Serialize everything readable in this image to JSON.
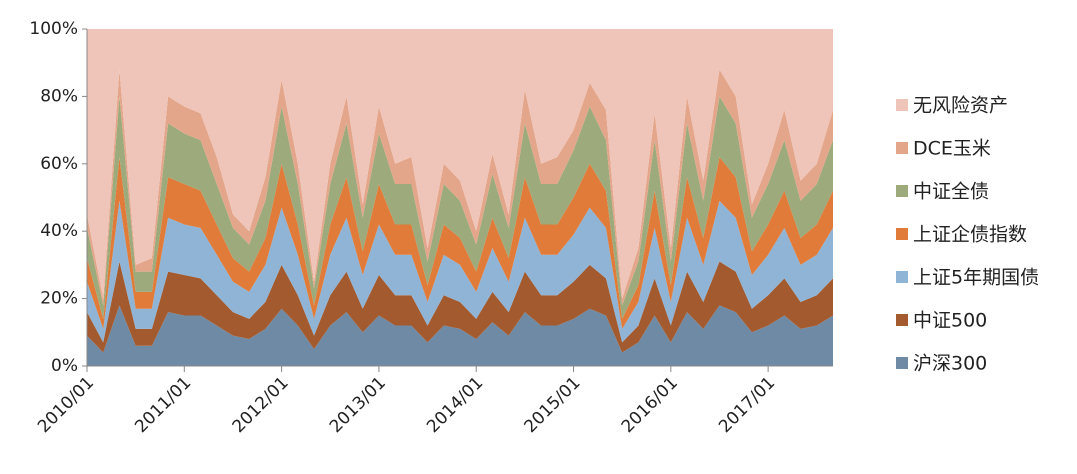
{
  "chart_data": {
    "type": "stacked_area",
    "x": [
      "2010/01",
      "2010/03",
      "2010/05",
      "2010/07",
      "2010/09",
      "2010/11",
      "2011/01",
      "2011/03",
      "2011/05",
      "2011/07",
      "2011/09",
      "2011/11",
      "2012/01",
      "2012/03",
      "2012/05",
      "2012/07",
      "2012/09",
      "2012/11",
      "2013/01",
      "2013/03",
      "2013/05",
      "2013/07",
      "2013/09",
      "2013/11",
      "2014/01",
      "2014/03",
      "2014/05",
      "2014/07",
      "2014/09",
      "2014/11",
      "2015/01",
      "2015/03",
      "2015/05",
      "2015/07",
      "2015/09",
      "2015/11",
      "2016/01",
      "2016/03",
      "2016/05",
      "2016/07",
      "2016/09",
      "2016/11",
      "2017/01",
      "2017/03",
      "2017/05",
      "2017/07",
      "2017/09"
    ],
    "xlim": [
      "2010/01",
      "2017/09"
    ],
    "xticks": [
      "2010/01",
      "2011/01",
      "2012/01",
      "2013/01",
      "2014/01",
      "2015/01",
      "2016/01",
      "2017/01"
    ],
    "ylim": [
      0,
      100
    ],
    "yticks": [
      {
        "value": 0,
        "label": "0%"
      },
      {
        "value": 20,
        "label": "20%"
      },
      {
        "value": 40,
        "label": "40%"
      },
      {
        "value": 60,
        "label": "60%"
      },
      {
        "value": 80,
        "label": "80%"
      },
      {
        "value": 100,
        "label": "100%"
      }
    ],
    "legend": "right",
    "series": [
      {
        "name": "沪深300",
        "color": "#6f8aa5",
        "values": [
          9,
          4,
          18,
          6,
          6,
          16,
          15,
          15,
          12,
          9,
          8,
          11,
          17,
          12,
          5,
          12,
          16,
          10,
          15,
          12,
          12,
          7,
          12,
          11,
          8,
          13,
          9,
          16,
          12,
          12,
          14,
          17,
          15,
          4,
          7,
          15,
          7,
          16,
          11,
          18,
          16,
          10,
          12,
          15,
          11,
          12,
          15
        ]
      },
      {
        "name": "中证500",
        "color": "#a35a2e",
        "values": [
          7,
          3,
          13,
          5,
          5,
          12,
          12,
          11,
          9,
          7,
          6,
          8,
          13,
          9,
          4,
          9,
          12,
          7,
          12,
          9,
          9,
          5,
          9,
          8,
          6,
          9,
          7,
          12,
          9,
          9,
          11,
          13,
          11,
          3,
          5,
          11,
          5,
          12,
          8,
          13,
          12,
          7,
          9,
          11,
          8,
          9,
          11
        ]
      },
      {
        "name": "上证5年期国债",
        "color": "#8fb4d6",
        "values": [
          9,
          4,
          18,
          6,
          6,
          16,
          15,
          15,
          12,
          9,
          8,
          11,
          17,
          12,
          5,
          12,
          16,
          10,
          15,
          12,
          12,
          7,
          12,
          11,
          8,
          13,
          9,
          16,
          12,
          12,
          14,
          17,
          15,
          4,
          7,
          15,
          7,
          16,
          11,
          18,
          16,
          10,
          12,
          15,
          11,
          12,
          15
        ]
      },
      {
        "name": "上证企债指数",
        "color": "#e07b39",
        "values": [
          7,
          3,
          13,
          5,
          5,
          12,
          12,
          11,
          9,
          7,
          6,
          8,
          13,
          9,
          4,
          9,
          12,
          7,
          12,
          9,
          9,
          5,
          9,
          8,
          6,
          9,
          7,
          12,
          9,
          9,
          11,
          13,
          11,
          3,
          5,
          11,
          5,
          12,
          8,
          13,
          12,
          7,
          9,
          11,
          8,
          9,
          11
        ]
      },
      {
        "name": "中证全债",
        "color": "#9caa7c",
        "values": [
          9,
          4,
          18,
          6,
          6,
          16,
          15,
          15,
          12,
          9,
          8,
          11,
          17,
          12,
          5,
          12,
          16,
          10,
          15,
          12,
          12,
          7,
          12,
          11,
          8,
          13,
          9,
          16,
          12,
          12,
          14,
          17,
          15,
          4,
          7,
          15,
          7,
          16,
          11,
          18,
          16,
          10,
          12,
          15,
          11,
          12,
          15
        ]
      },
      {
        "name": "DCE玉米",
        "color": "#e3a68a",
        "values": [
          4,
          2,
          8,
          2,
          4,
          8,
          8,
          8,
          8,
          4,
          4,
          7,
          8,
          6,
          2,
          6,
          8,
          4,
          8,
          6,
          8,
          4,
          6,
          6,
          4,
          6,
          4,
          10,
          6,
          8,
          6,
          7,
          9,
          2,
          4,
          8,
          4,
          8,
          6,
          8,
          8,
          4,
          6,
          9,
          6,
          6,
          9
        ]
      },
      {
        "name": "无风险资产",
        "color": "#f0c5b9",
        "values": [
          55,
          80,
          12,
          70,
          68,
          20,
          23,
          25,
          38,
          55,
          60,
          44,
          15,
          40,
          75,
          40,
          20,
          52,
          23,
          40,
          38,
          65,
          40,
          45,
          60,
          37,
          55,
          18,
          40,
          38,
          30,
          16,
          24,
          80,
          65,
          25,
          65,
          20,
          45,
          12,
          20,
          52,
          40,
          24,
          45,
          40,
          24
        ]
      }
    ]
  }
}
